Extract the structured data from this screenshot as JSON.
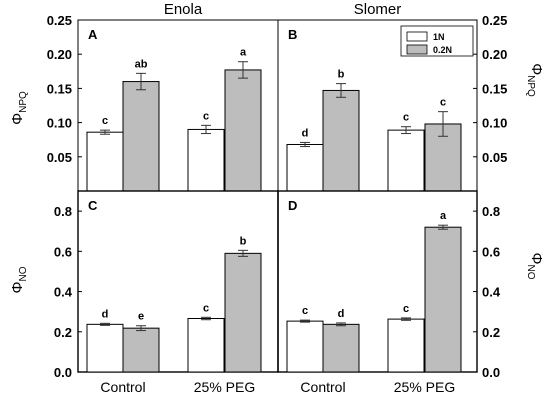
{
  "chart_data": [
    {
      "type": "bar",
      "panel": "A",
      "column_title": "Enola",
      "ylabel": "ΦNPQ",
      "ylim": [
        0,
        0.25
      ],
      "yticks": [
        0.05,
        0.1,
        0.15,
        0.2,
        0.25
      ],
      "categories": [
        "Control",
        "25% PEG"
      ],
      "series": [
        {
          "name": "1N",
          "color": "#ffffff",
          "values": [
            0.086,
            0.09
          ],
          "errors": [
            0.003,
            0.006
          ],
          "letters": [
            "c",
            "c"
          ]
        },
        {
          "name": "0.2N",
          "color": "#bdbdbd",
          "values": [
            0.16,
            0.177
          ],
          "errors": [
            0.012,
            0.012
          ],
          "letters": [
            "ab",
            "a"
          ]
        }
      ]
    },
    {
      "type": "bar",
      "panel": "B",
      "column_title": "Slomer",
      "ylabel": "ΦNPQ",
      "ylim": [
        0,
        0.25
      ],
      "yticks": [
        0.05,
        0.1,
        0.15,
        0.2,
        0.25
      ],
      "categories": [
        "Control",
        "25% PEG"
      ],
      "series": [
        {
          "name": "1N",
          "color": "#ffffff",
          "values": [
            0.068,
            0.089
          ],
          "errors": [
            0.003,
            0.005
          ],
          "letters": [
            "d",
            "c"
          ]
        },
        {
          "name": "0.2N",
          "color": "#bdbdbd",
          "values": [
            0.147,
            0.098
          ],
          "errors": [
            0.01,
            0.018
          ],
          "letters": [
            "b",
            "c"
          ]
        }
      ]
    },
    {
      "type": "bar",
      "panel": "C",
      "ylabel": "ΦNO",
      "ylim": [
        0,
        0.9
      ],
      "yticks": [
        0.0,
        0.2,
        0.4,
        0.6,
        0.8
      ],
      "categories": [
        "Control",
        "25% PEG"
      ],
      "series": [
        {
          "name": "1N",
          "color": "#ffffff",
          "values": [
            0.237,
            0.266
          ],
          "errors": [
            0.005,
            0.006
          ],
          "letters": [
            "d",
            "c"
          ]
        },
        {
          "name": "0.2N",
          "color": "#bdbdbd",
          "values": [
            0.218,
            0.59
          ],
          "errors": [
            0.012,
            0.015
          ],
          "letters": [
            "e",
            "b"
          ]
        }
      ]
    },
    {
      "type": "bar",
      "panel": "D",
      "ylabel": "ΦNO",
      "ylim": [
        0,
        0.9
      ],
      "yticks": [
        0.0,
        0.2,
        0.4,
        0.6,
        0.8
      ],
      "categories": [
        "Control",
        "25% PEG"
      ],
      "series": [
        {
          "name": "1N",
          "color": "#ffffff",
          "values": [
            0.253,
            0.263
          ],
          "errors": [
            0.005,
            0.006
          ],
          "letters": [
            "c",
            "c"
          ]
        },
        {
          "name": "0.2N",
          "color": "#bdbdbd",
          "values": [
            0.237,
            0.72
          ],
          "errors": [
            0.007,
            0.01
          ],
          "letters": [
            "d",
            "a"
          ]
        }
      ]
    }
  ],
  "legend": {
    "placement": "top-right of panel B",
    "entries": [
      {
        "label": "1N",
        "color": "#ffffff"
      },
      {
        "label": "0.2N",
        "color": "#bdbdbd"
      }
    ]
  },
  "yaxis_labels": {
    "npq": {
      "main": "Φ",
      "sub": "NPQ"
    },
    "no": {
      "main": "Φ",
      "sub": "NO"
    }
  }
}
